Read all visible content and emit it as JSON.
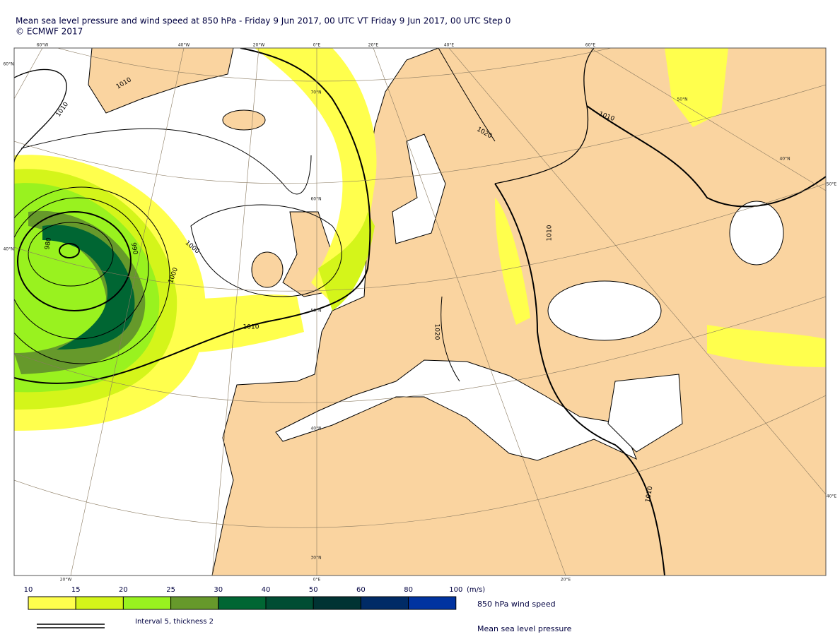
{
  "title": "Mean sea level pressure and wind speed at 850 hPa - Friday 9 Jun 2017, 00 UTC VT Friday 9 Jun 2017, 00 UTC Step 0",
  "copyright": "© ECMWF 2017",
  "map": {
    "graticule_labels": [
      "60°W",
      "40°W",
      "20°W",
      "0°E",
      "20°E",
      "40°E",
      "60°E",
      "60°N",
      "40°N",
      "50°N",
      "40°N",
      "50°E",
      "40°E",
      "20°W",
      "0°E",
      "20°E",
      "70°N",
      "60°N",
      "50°N",
      "40°N",
      "30°N"
    ],
    "isobar_labels": [
      "1010",
      "1010",
      "980",
      "990",
      "1000",
      "1000",
      "1010",
      "1020",
      "1010",
      "1010",
      "1020",
      "1010"
    ]
  },
  "legend": {
    "levels": [
      10,
      15,
      20,
      25,
      30,
      40,
      50,
      60,
      80,
      100
    ],
    "colors": [
      "#ffff4d",
      "#d4f51a",
      "#99f21f",
      "#66992b",
      "#006633",
      "#004d33",
      "#003333",
      "#002b66",
      "#0033a0"
    ],
    "unit": "(m/s)",
    "wind_label": "850 hPa wind speed",
    "interval_text": "Interval 5, thickness 2",
    "pressure_label": "Mean sea level pressure"
  }
}
